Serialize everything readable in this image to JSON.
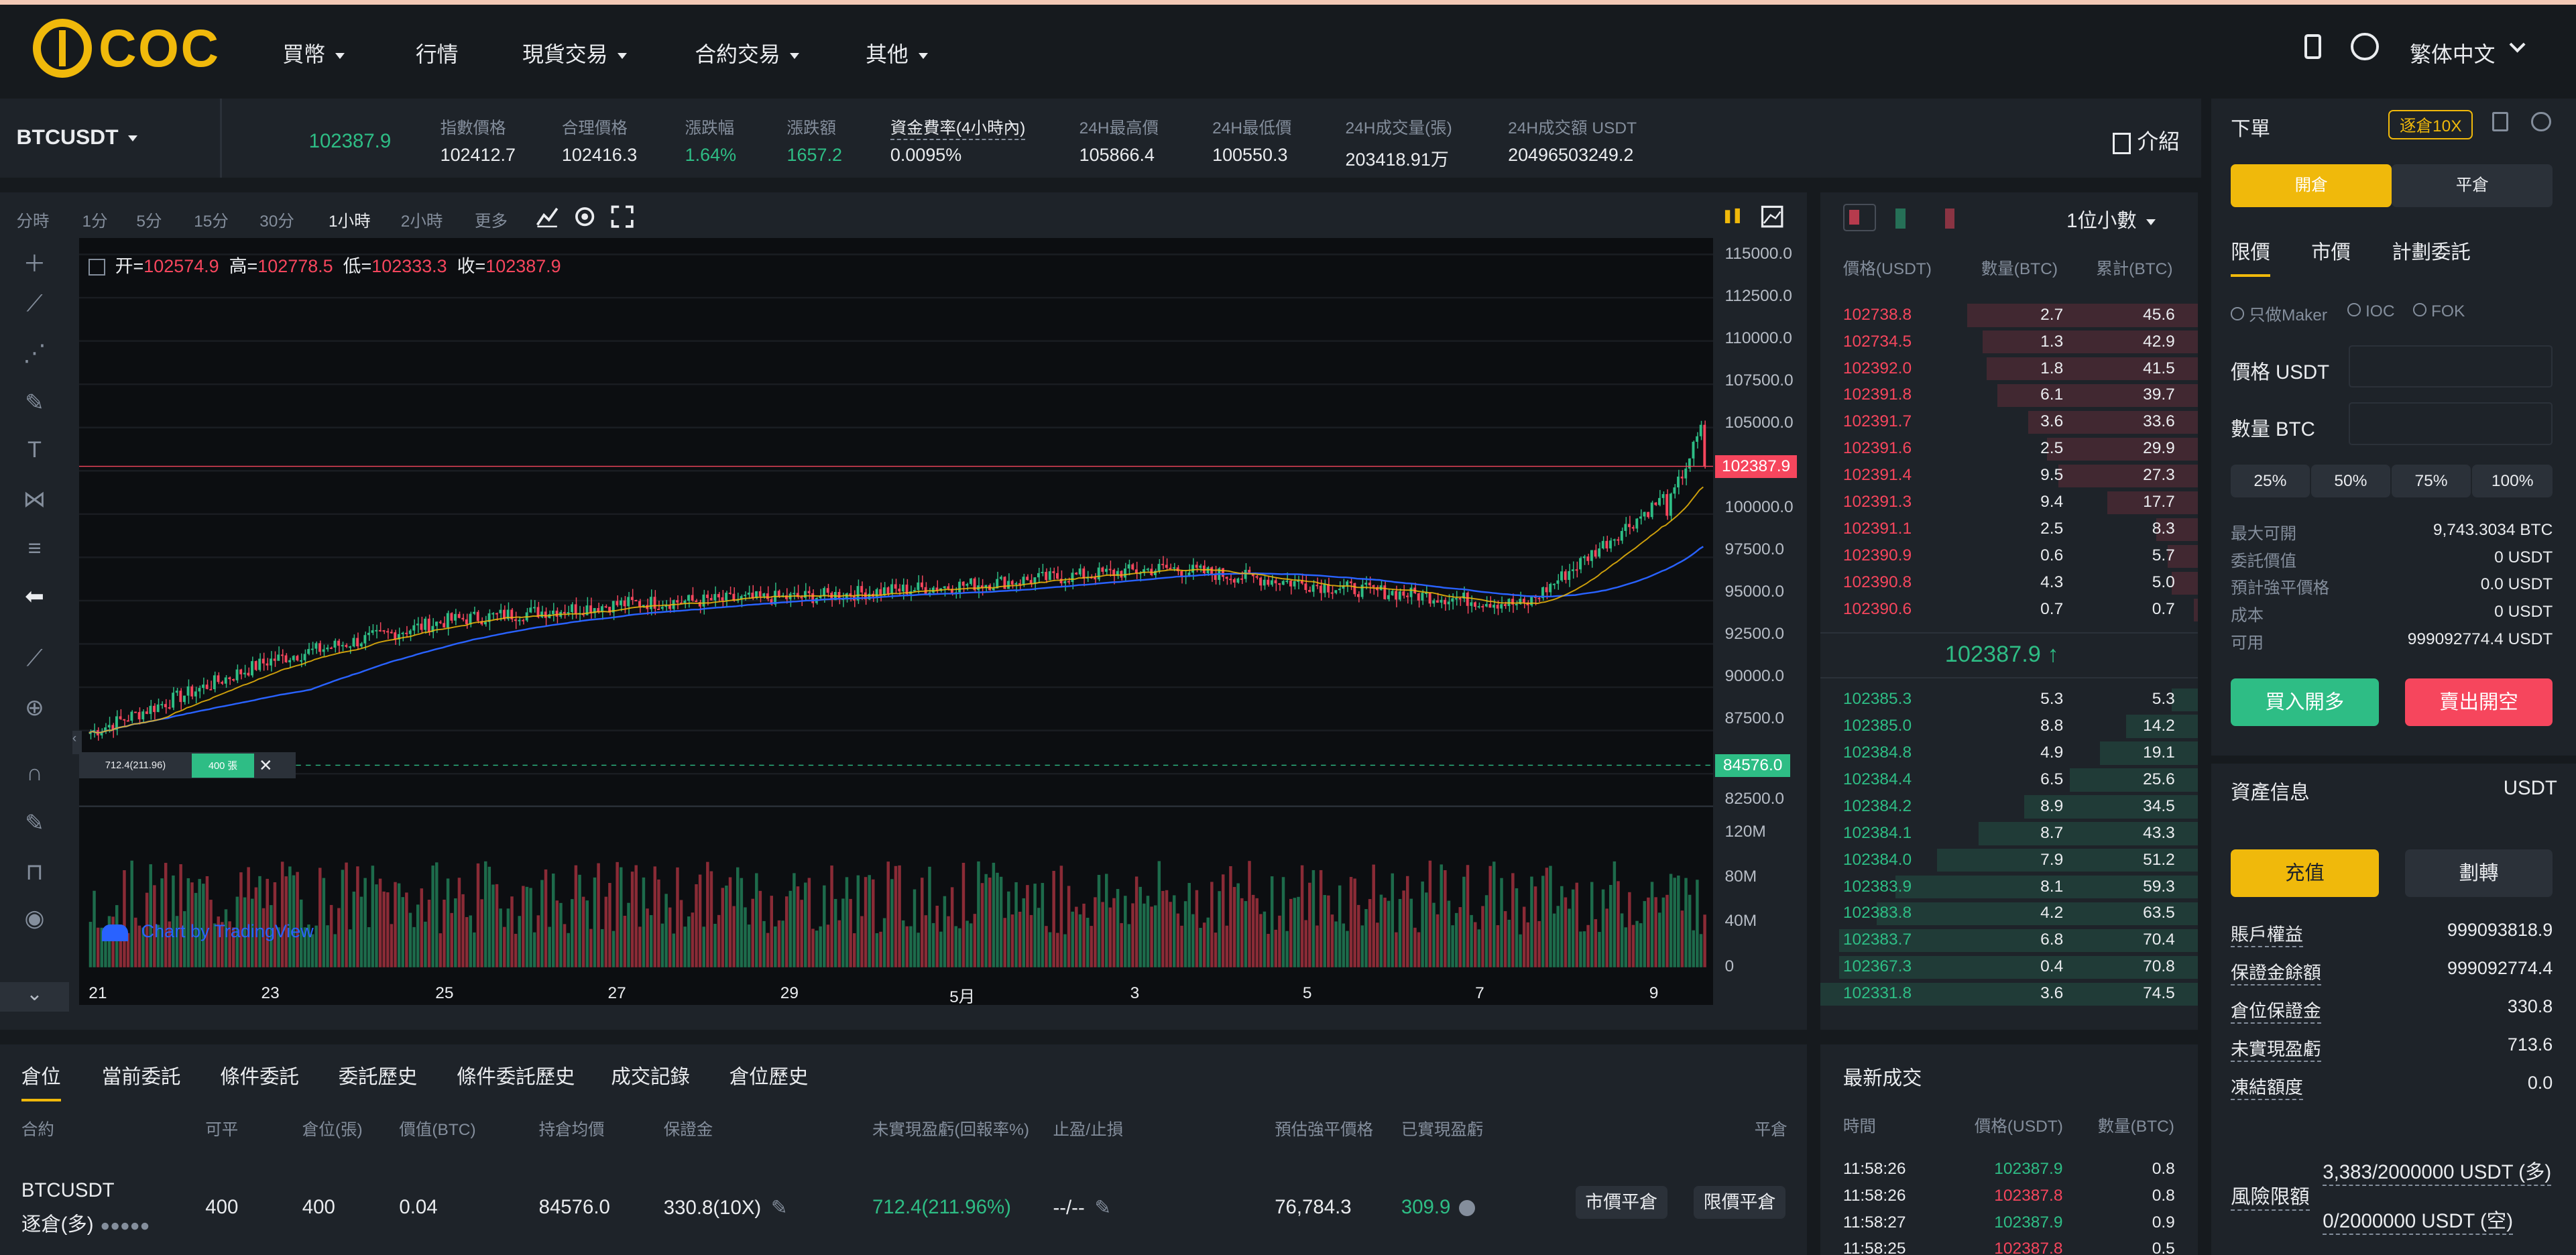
{
  "brand": {
    "logo_text": "COC",
    "accent": "#f0b90b"
  },
  "nav": {
    "items": [
      "買幣",
      "行情",
      "現貨交易",
      "合約交易",
      "其他"
    ],
    "language": "繁体中文"
  },
  "ticker": {
    "symbol": "BTCUSDT",
    "last_price": "102387.9",
    "stats": [
      {
        "label": "指數價格",
        "value": "102412.7"
      },
      {
        "label": "合理價格",
        "value": "102416.3"
      },
      {
        "label": "漲跌幅",
        "value": "1.64%"
      },
      {
        "label": "漲跌額",
        "value": "1657.2"
      },
      {
        "label": "資金費率(4小時內)",
        "value": "0.0095%"
      },
      {
        "label": "24H最高價",
        "value": "105866.4"
      },
      {
        "label": "24H最低價",
        "value": "100550.3"
      },
      {
        "label": "24H成交量(張)",
        "value": "203418.91万"
      },
      {
        "label": "24H成交額 USDT",
        "value": "20496503249.2"
      }
    ],
    "intro": "介紹"
  },
  "chart": {
    "timeframes": [
      "分時",
      "1分",
      "5分",
      "15分",
      "30分",
      "1小時",
      "2小時",
      "更多"
    ],
    "active_timeframe": "1小時",
    "ohlc": {
      "open_label": "开=",
      "open": "102574.9",
      "high_label": "高=",
      "high": "102778.5",
      "low_label": "低=",
      "low": "102333.3",
      "close_label": "收=",
      "close": "102387.9"
    },
    "y_labels": [
      "115000.0",
      "112500.0",
      "110000.0",
      "107500.0",
      "105000.0",
      "102500.0",
      "100000.0",
      "97500.0",
      "95000.0",
      "92500.0",
      "90000.0",
      "87500.0",
      "82500.0"
    ],
    "price_tag": "102387.9",
    "entry_tag": "84576.0",
    "vol_labels": [
      "120M",
      "80M",
      "40M",
      "0"
    ],
    "x_labels": [
      "21",
      "23",
      "25",
      "27",
      "29",
      "5月",
      "3",
      "5",
      "7",
      "9"
    ],
    "watermark": "Chart by TradingView",
    "position_marker": {
      "pnl": "712.4(211.96)",
      "qty": "400 張"
    }
  },
  "chart_data": {
    "type": "line",
    "title": "",
    "x": [
      "21",
      "23",
      "25",
      "27",
      "29",
      "5月",
      "3",
      "5",
      "7",
      "9"
    ],
    "series": [
      {
        "values": [
          86500,
          90800,
          93200,
          94200,
          94600,
          95400,
          96300,
          95100,
          94100,
          102387.9
        ]
      }
    ],
    "ylim": [
      82500,
      115000
    ]
  },
  "orderbook": {
    "precision": "1位小數",
    "headers": [
      "價格(USDT)",
      "數量(BTC)",
      "累計(BTC)"
    ],
    "asks": [
      {
        "price": "102738.8",
        "qty": "2.7",
        "total": "45.6",
        "depth": 0.61
      },
      {
        "price": "102734.5",
        "qty": "1.3",
        "total": "42.9",
        "depth": 0.57
      },
      {
        "price": "102392.0",
        "qty": "1.8",
        "total": "41.5",
        "depth": 0.56
      },
      {
        "price": "102391.8",
        "qty": "6.1",
        "total": "39.7",
        "depth": 0.53
      },
      {
        "price": "102391.7",
        "qty": "3.6",
        "total": "33.6",
        "depth": 0.45
      },
      {
        "price": "102391.6",
        "qty": "2.5",
        "total": "29.9",
        "depth": 0.4
      },
      {
        "price": "102391.4",
        "qty": "9.5",
        "total": "27.3",
        "depth": 0.37
      },
      {
        "price": "102391.3",
        "qty": "9.4",
        "total": "17.7",
        "depth": 0.24
      },
      {
        "price": "102391.1",
        "qty": "2.5",
        "total": "8.3",
        "depth": 0.11
      },
      {
        "price": "102390.9",
        "qty": "0.6",
        "total": "5.7",
        "depth": 0.08
      },
      {
        "price": "102390.8",
        "qty": "4.3",
        "total": "5.0",
        "depth": 0.07
      },
      {
        "price": "102390.6",
        "qty": "0.7",
        "total": "0.7",
        "depth": 0.01
      }
    ],
    "mid_price": "102387.9 ↑",
    "bids": [
      {
        "price": "102385.3",
        "qty": "5.3",
        "total": "5.3",
        "depth": 0.07
      },
      {
        "price": "102385.0",
        "qty": "8.8",
        "total": "14.2",
        "depth": 0.19
      },
      {
        "price": "102384.8",
        "qty": "4.9",
        "total": "19.1",
        "depth": 0.26
      },
      {
        "price": "102384.4",
        "qty": "6.5",
        "total": "25.6",
        "depth": 0.34
      },
      {
        "price": "102384.2",
        "qty": "8.9",
        "total": "34.5",
        "depth": 0.46
      },
      {
        "price": "102384.1",
        "qty": "8.7",
        "total": "43.3",
        "depth": 0.58
      },
      {
        "price": "102384.0",
        "qty": "7.9",
        "total": "51.2",
        "depth": 0.69
      },
      {
        "price": "102383.9",
        "qty": "8.1",
        "total": "59.3",
        "depth": 0.8
      },
      {
        "price": "102383.8",
        "qty": "4.2",
        "total": "63.5",
        "depth": 0.85
      },
      {
        "price": "102383.7",
        "qty": "6.8",
        "total": "70.4",
        "depth": 0.95
      },
      {
        "price": "102367.3",
        "qty": "0.4",
        "total": "70.8",
        "depth": 0.95
      },
      {
        "price": "102331.8",
        "qty": "3.6",
        "total": "74.5",
        "depth": 1.0
      }
    ]
  },
  "order_form": {
    "title": "下單",
    "mode_badge": "逐倉10X",
    "tabs": [
      "開倉",
      "平倉"
    ],
    "order_types": [
      "限價",
      "市價",
      "計劃委託"
    ],
    "options": [
      "只做Maker",
      "IOC",
      "FOK"
    ],
    "price_label": "價格 USDT",
    "qty_label": "數量 BTC",
    "price_value": "",
    "qty_value": "",
    "percents": [
      "25%",
      "50%",
      "75%",
      "100%"
    ],
    "info": [
      {
        "label": "最大可開",
        "value": "9,743.3034 BTC"
      },
      {
        "label": "委託價值",
        "value": "0 USDT"
      },
      {
        "label": "預計強平價格",
        "value": "0.0 USDT"
      },
      {
        "label": "成本",
        "value": "0 USDT"
      },
      {
        "label": "可用",
        "value": "999092774.4 USDT"
      }
    ],
    "buy_label": "買入開多",
    "sell_label": "賣出開空"
  },
  "assets": {
    "title": "資產信息",
    "currency": "USDT",
    "deposit": "充值",
    "transfer": "劃轉",
    "rows": [
      {
        "label": "賬戶權益",
        "value": "999093818.9"
      },
      {
        "label": "保證金餘額",
        "value": "999092774.4"
      },
      {
        "label": "倉位保證金",
        "value": "330.8"
      },
      {
        "label": "未實現盈虧",
        "value": "713.6"
      },
      {
        "label": "凍結額度",
        "value": "0.0"
      }
    ],
    "risk_label": "風險限額",
    "risk_long": "3,383/2000000 USDT (多)",
    "risk_short": "0/2000000 USDT (空)"
  },
  "positions": {
    "tabs": [
      "倉位",
      "當前委託",
      "條件委託",
      "委託歷史",
      "條件委託歷史",
      "成交記錄",
      "倉位歷史"
    ],
    "headers": [
      "合約",
      "可平",
      "倉位(張)",
      "價值(BTC)",
      "持倉均價",
      "保證金",
      "未實現盈虧(回報率%)",
      "止盈/止損",
      "預估強平價格",
      "已實現盈虧",
      "平倉"
    ],
    "row": {
      "symbol": "BTCUSDT",
      "side": "逐倉(多)",
      "closable": "400",
      "size": "400",
      "value": "0.04",
      "avg_price": "84576.0",
      "margin": "330.8(10X)",
      "pnl": "712.4(211.96%)",
      "tpsl": "--/--",
      "liq_price": "76,784.3",
      "realized": "309.9",
      "market_close": "市價平倉",
      "limit_close": "限價平倉"
    }
  },
  "trades": {
    "title": "最新成交",
    "headers": [
      "時間",
      "價格(USDT)",
      "數量(BTC)"
    ],
    "rows": [
      {
        "time": "11:58:26",
        "price": "102387.9",
        "qty": "0.8",
        "side": "buy"
      },
      {
        "time": "11:58:26",
        "price": "102387.8",
        "qty": "0.8",
        "side": "sell"
      },
      {
        "time": "11:58:27",
        "price": "102387.9",
        "qty": "0.9",
        "side": "buy"
      },
      {
        "time": "11:58:25",
        "price": "102387.8",
        "qty": "0.5",
        "side": "sell"
      }
    ]
  }
}
